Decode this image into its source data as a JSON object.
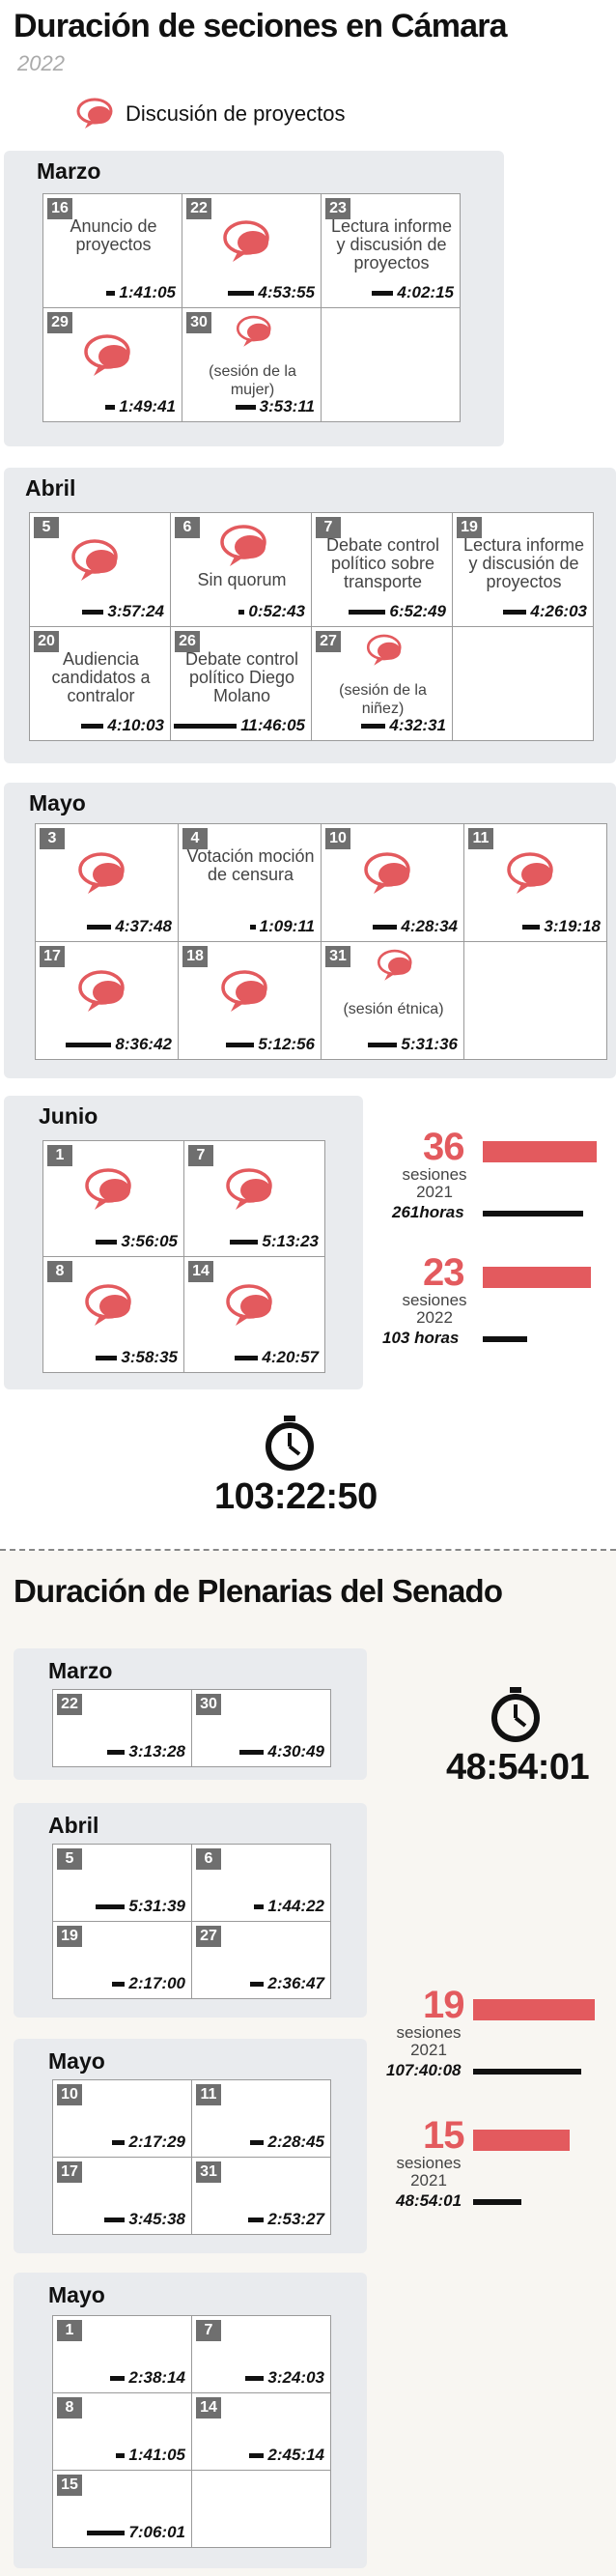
{
  "camara": {
    "title": "Duración de seciones en Cámara",
    "year": "2022",
    "legend_label": "Discusión de proyectos",
    "months": [
      {
        "name": "Marzo",
        "cells": [
          {
            "day": "16",
            "label": "Anuncio de proyectos",
            "bubble": false,
            "time": "1:41:05",
            "hours": 1.68
          },
          {
            "day": "22",
            "label": "",
            "bubble": true,
            "time": "4:53:55",
            "hours": 4.9
          },
          {
            "day": "23",
            "label": "Lectura informe y discusión de proyectos",
            "bubble": false,
            "time": "4:02:15",
            "hours": 4.04
          },
          {
            "day": "29",
            "label": "",
            "bubble": true,
            "time": "1:49:41",
            "hours": 1.83
          },
          {
            "day": "30",
            "label": "(sesión de la mujer)",
            "bubble": true,
            "small": true,
            "time": "3:53:11",
            "hours": 3.89
          },
          {
            "empty": true
          }
        ]
      },
      {
        "name": "Abril",
        "cells": [
          {
            "day": "5",
            "label": "",
            "bubble": true,
            "time": "3:57:24",
            "hours": 3.96
          },
          {
            "day": "6",
            "label": "Sin quorum",
            "bubble": true,
            "time": "0:52:43",
            "hours": 0.88
          },
          {
            "day": "7",
            "label": "Debate control político sobre transporte",
            "bubble": false,
            "time": "6:52:49",
            "hours": 6.88
          },
          {
            "day": "19",
            "label": "Lectura informe y discusión de proyectos",
            "bubble": false,
            "time": "4:26:03",
            "hours": 4.43
          },
          {
            "day": "20",
            "label": "Audiencia candidatos a contralor",
            "bubble": false,
            "time": "4:10:03",
            "hours": 4.17
          },
          {
            "day": "26",
            "label": "Debate control político Diego Molano",
            "bubble": false,
            "time": "11:46:05",
            "hours": 11.77
          },
          {
            "day": "27",
            "label": "(sesión de la niñez)",
            "bubble": true,
            "small": true,
            "time": "4:32:31",
            "hours": 4.54
          },
          {
            "empty": true
          }
        ]
      },
      {
        "name": "Mayo",
        "cells": [
          {
            "day": "3",
            "label": "",
            "bubble": true,
            "time": "4:37:48",
            "hours": 4.63
          },
          {
            "day": "4",
            "label": "Votación moción de censura",
            "bubble": false,
            "time": "1:09:11",
            "hours": 1.15
          },
          {
            "day": "10",
            "label": "",
            "bubble": true,
            "time": "4:28:34",
            "hours": 4.48
          },
          {
            "day": "11",
            "label": "",
            "bubble": true,
            "time": "3:19:18",
            "hours": 3.32
          },
          {
            "day": "17",
            "label": "",
            "bubble": true,
            "time": "8:36:42",
            "hours": 8.61
          },
          {
            "day": "18",
            "label": "",
            "bubble": true,
            "time": "5:12:56",
            "hours": 5.22
          },
          {
            "day": "31",
            "label": "(sesión étnica)",
            "bubble": true,
            "small": true,
            "time": "5:31:36",
            "hours": 5.53
          },
          {
            "empty": true
          }
        ]
      },
      {
        "name": "Junio",
        "cells": [
          {
            "day": "1",
            "label": "",
            "bubble": true,
            "time": "3:56:05",
            "hours": 3.93
          },
          {
            "day": "7",
            "label": "",
            "bubble": true,
            "time": "5:13:23",
            "hours": 5.22
          },
          {
            "day": "8",
            "label": "",
            "bubble": true,
            "time": "3:58:35",
            "hours": 3.98
          },
          {
            "day": "14",
            "label": "",
            "bubble": true,
            "time": "4:20:57",
            "hours": 4.35
          }
        ]
      }
    ],
    "stats": [
      {
        "num": "36",
        "label1": "sesiones",
        "label2": "2021",
        "hours_text": "261horas",
        "sessions": 36,
        "hours": 261
      },
      {
        "num": "23",
        "label1": "sesiones",
        "label2": "2022",
        "hours_text": "103 horas",
        "sessions": 23,
        "hours": 103
      }
    ],
    "total_time": "103:22:50"
  },
  "senado": {
    "title": "Duración de Plenarias del Senado",
    "total_time": "48:54:01",
    "months": [
      {
        "name": "Marzo",
        "cells": [
          {
            "day": "22",
            "time": "3:13:28",
            "hours": 3.22
          },
          {
            "day": "30",
            "time": "4:30:49",
            "hours": 4.51
          }
        ]
      },
      {
        "name": "Abril",
        "cells": [
          {
            "day": "5",
            "time": "5:31:39",
            "hours": 5.53
          },
          {
            "day": "6",
            "time": "1:44:22",
            "hours": 1.74
          },
          {
            "day": "19",
            "time": "2:17:00",
            "hours": 2.28
          },
          {
            "day": "27",
            "time": "2:36:47",
            "hours": 2.61
          }
        ]
      },
      {
        "name": "Mayo",
        "cells": [
          {
            "day": "10",
            "time": "2:17:29",
            "hours": 2.29
          },
          {
            "day": "11",
            "time": "2:28:45",
            "hours": 2.48
          },
          {
            "day": "17",
            "time": "3:45:38",
            "hours": 3.76
          },
          {
            "day": "31",
            "time": "2:53:27",
            "hours": 2.89
          }
        ]
      },
      {
        "name": "Mayo",
        "cells": [
          {
            "day": "1",
            "time": "2:38:14",
            "hours": 2.64
          },
          {
            "day": "7",
            "time": "3:24:03",
            "hours": 3.4
          },
          {
            "day": "8",
            "time": "1:41:05",
            "hours": 1.68
          },
          {
            "day": "14",
            "time": "2:45:14",
            "hours": 2.75
          },
          {
            "day": "15",
            "time": "7:06:01",
            "hours": 7.1
          },
          {
            "empty": true
          }
        ]
      }
    ],
    "stats": [
      {
        "num": "19",
        "label1": "sesiones",
        "label2": "2021",
        "hours_text": "107:40:08",
        "sessions": 19,
        "hours": 107.67
      },
      {
        "num": "15",
        "label1": "sesiones",
        "label2": "2021",
        "hours_text": "48:54:01",
        "sessions": 15,
        "hours": 48.9
      }
    ]
  },
  "colors": {
    "accent": "#e35a5e",
    "bar": "#111111",
    "panel": "#e9ebee",
    "day_badge": "#6f6f6f"
  },
  "chart_data": [
    {
      "type": "table",
      "title": "Duración de seciones en Cámara",
      "categories": [
        "16 Mar",
        "22 Mar",
        "23 Mar",
        "29 Mar",
        "30 Mar",
        "5 Abr",
        "6 Abr",
        "7 Abr",
        "19 Abr",
        "20 Abr",
        "26 Abr",
        "27 Abr",
        "3 May",
        "4 May",
        "10 May",
        "11 May",
        "17 May",
        "18 May",
        "31 May",
        "1 Jun",
        "7 Jun",
        "8 Jun",
        "14 Jun"
      ],
      "values": [
        "1:41:05",
        "4:53:55",
        "4:02:15",
        "1:49:41",
        "3:53:11",
        "3:57:24",
        "0:52:43",
        "6:52:49",
        "4:26:03",
        "4:10:03",
        "11:46:05",
        "4:32:31",
        "4:37:48",
        "1:09:11",
        "4:28:34",
        "3:19:18",
        "8:36:42",
        "5:12:56",
        "5:31:36",
        "3:56:05",
        "5:13:23",
        "3:58:35",
        "4:20:57"
      ]
    },
    {
      "type": "bar",
      "categories": [
        "2021",
        "2022"
      ],
      "series": [
        {
          "name": "sesiones",
          "values": [
            36,
            23
          ]
        }
      ]
    },
    {
      "type": "table",
      "title": "Duración de Plenarias del Senado",
      "categories": [
        "22 Mar",
        "30 Mar",
        "5 Abr",
        "6 Abr",
        "19 Abr",
        "27 Abr",
        "10 May",
        "11 May",
        "17 May",
        "31 May",
        "1",
        "7",
        "8",
        "14",
        "15"
      ],
      "values": [
        "3:13:28",
        "4:30:49",
        "5:31:39",
        "1:44:22",
        "2:17:00",
        "2:36:47",
        "2:17:29",
        "2:28:45",
        "3:45:38",
        "2:53:27",
        "2:38:14",
        "3:24:03",
        "1:41:05",
        "2:45:14",
        "7:06:01"
      ]
    },
    {
      "type": "bar",
      "categories": [
        "2021",
        "2021"
      ],
      "series": [
        {
          "name": "sesiones",
          "values": [
            19,
            15
          ]
        }
      ]
    }
  ]
}
